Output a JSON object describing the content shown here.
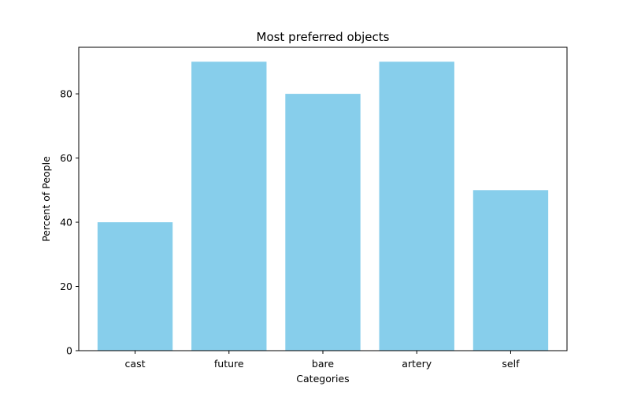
{
  "chart_data": {
    "type": "bar",
    "title": "Most preferred objects",
    "xlabel": "Categories",
    "ylabel": "Percent of People",
    "categories": [
      "cast",
      "future",
      "bare",
      "artery",
      "self"
    ],
    "values": [
      40,
      90,
      80,
      90,
      50
    ],
    "ylim": [
      0,
      94.5
    ],
    "yticks": [
      0,
      20,
      40,
      60,
      80
    ],
    "bar_color": "#87ceeb",
    "grid": false,
    "legend": "none"
  }
}
